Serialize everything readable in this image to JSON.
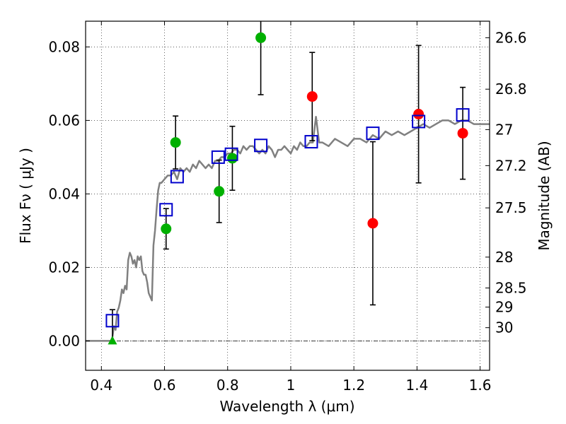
{
  "chart_data": {
    "type": "scatter",
    "xlabel": "Wavelength  λ (μm)",
    "ylabel": "Flux  Fν  ( μJy )",
    "ylabel_right": "Magnitude (AB)",
    "xlim": [
      0.35,
      1.63
    ],
    "ylim": [
      -0.008,
      0.087
    ],
    "grid": true,
    "x_ticks": [
      0.4,
      0.6,
      0.8,
      1.0,
      1.2,
      1.4,
      1.6
    ],
    "x_tick_labels": [
      "0.4",
      "0.6",
      "0.8",
      "1",
      "1.2",
      "1.4",
      "1.6"
    ],
    "y_ticks": [
      0.0,
      0.02,
      0.04,
      0.06,
      0.08
    ],
    "y_tick_labels": [
      "0.00",
      "0.02",
      "0.04",
      "0.06",
      "0.08"
    ],
    "right_ticks": [
      {
        "mag": "26.6",
        "flux": 0.0825
      },
      {
        "mag": "26.8",
        "flux": 0.0685
      },
      {
        "mag": "27",
        "flux": 0.0575
      },
      {
        "mag": "27.2",
        "flux": 0.0477
      },
      {
        "mag": "27.5",
        "flux": 0.0362
      },
      {
        "mag": "28",
        "flux": 0.0228
      },
      {
        "mag": "28.5",
        "flux": 0.0144
      },
      {
        "mag": "29",
        "flux": 0.0092
      },
      {
        "mag": "30",
        "flux": 0.0036
      }
    ],
    "colors": {
      "model": "#808080",
      "detection": "#00b000",
      "nir": "#ff0000",
      "model_phot": "#0000cc",
      "errorbar": "#000000",
      "upper_limit": "#00b000"
    },
    "series": [
      {
        "marker": "line",
        "x": [
          0.35,
          0.43,
          0.435,
          0.44,
          0.445,
          0.45,
          0.455,
          0.46,
          0.465,
          0.47,
          0.475,
          0.48,
          0.485,
          0.49,
          0.495,
          0.5,
          0.505,
          0.51,
          0.515,
          0.52,
          0.525,
          0.53,
          0.535,
          0.54,
          0.545,
          0.55,
          0.555,
          0.56,
          0.565,
          0.57,
          0.575,
          0.58,
          0.585,
          0.59,
          0.6,
          0.61,
          0.62,
          0.63,
          0.64,
          0.65,
          0.66,
          0.67,
          0.68,
          0.69,
          0.7,
          0.71,
          0.72,
          0.73,
          0.74,
          0.75,
          0.76,
          0.77,
          0.78,
          0.79,
          0.8,
          0.81,
          0.82,
          0.83,
          0.84,
          0.85,
          0.86,
          0.87,
          0.88,
          0.89,
          0.9,
          0.91,
          0.92,
          0.93,
          0.94,
          0.95,
          0.96,
          0.97,
          0.98,
          0.99,
          1.0,
          1.01,
          1.02,
          1.03,
          1.04,
          1.05,
          1.06,
          1.07,
          1.08,
          1.09,
          1.1,
          1.12,
          1.14,
          1.16,
          1.18,
          1.2,
          1.22,
          1.24,
          1.26,
          1.28,
          1.3,
          1.32,
          1.34,
          1.36,
          1.38,
          1.4,
          1.42,
          1.44,
          1.46,
          1.48,
          1.5,
          1.52,
          1.54,
          1.56,
          1.58,
          1.6,
          1.63
        ],
        "y": [
          0.0,
          0.0,
          0.001,
          0.004,
          0.003,
          0.008,
          0.009,
          0.011,
          0.014,
          0.013,
          0.015,
          0.014,
          0.022,
          0.024,
          0.023,
          0.021,
          0.022,
          0.02,
          0.023,
          0.022,
          0.023,
          0.019,
          0.018,
          0.018,
          0.016,
          0.013,
          0.012,
          0.011,
          0.026,
          0.03,
          0.036,
          0.041,
          0.043,
          0.043,
          0.044,
          0.045,
          0.045,
          0.046,
          0.044,
          0.047,
          0.046,
          0.047,
          0.046,
          0.048,
          0.047,
          0.049,
          0.048,
          0.047,
          0.048,
          0.047,
          0.049,
          0.049,
          0.05,
          0.05,
          0.051,
          0.051,
          0.052,
          0.052,
          0.051,
          0.053,
          0.052,
          0.053,
          0.053,
          0.052,
          0.051,
          0.052,
          0.051,
          0.053,
          0.052,
          0.05,
          0.052,
          0.052,
          0.053,
          0.052,
          0.051,
          0.053,
          0.052,
          0.054,
          0.053,
          0.053,
          0.054,
          0.054,
          0.061,
          0.054,
          0.054,
          0.053,
          0.055,
          0.054,
          0.053,
          0.055,
          0.055,
          0.054,
          0.056,
          0.055,
          0.057,
          0.056,
          0.057,
          0.056,
          0.057,
          0.058,
          0.059,
          0.058,
          0.059,
          0.06,
          0.06,
          0.059,
          0.06,
          0.06,
          0.059,
          0.059,
          0.059
        ]
      },
      {
        "marker": "circle",
        "color": "green",
        "points": [
          {
            "x": 0.605,
            "y": 0.0305,
            "err_lo": 0.0055,
            "err_hi": 0.0055
          },
          {
            "x": 0.635,
            "y": 0.054,
            "err_lo": 0.0072,
            "err_hi": 0.0072
          },
          {
            "x": 0.773,
            "y": 0.0407,
            "err_lo": 0.0085,
            "err_hi": 0.0085
          },
          {
            "x": 0.815,
            "y": 0.0497,
            "err_lo": 0.0087,
            "err_hi": 0.0087
          },
          {
            "x": 0.905,
            "y": 0.0825,
            "err_lo": 0.0155,
            "err_hi": 0.0155
          }
        ]
      },
      {
        "marker": "circle",
        "color": "red",
        "points": [
          {
            "x": 1.068,
            "y": 0.0665,
            "err_lo": 0.012,
            "err_hi": 0.012
          },
          {
            "x": 1.26,
            "y": 0.032,
            "err_lo": 0.0222,
            "err_hi": 0.0222
          },
          {
            "x": 1.405,
            "y": 0.0617,
            "err_lo": 0.0187,
            "err_hi": 0.0187
          },
          {
            "x": 1.545,
            "y": 0.0565,
            "err_lo": 0.0125,
            "err_hi": 0.0125
          }
        ]
      },
      {
        "marker": "open-square",
        "color": "blue",
        "x": [
          0.435,
          0.605,
          0.64,
          0.77,
          0.812,
          0.905,
          1.065,
          1.26,
          1.405,
          1.545
        ],
        "y": [
          0.0055,
          0.0357,
          0.0447,
          0.05,
          0.0508,
          0.0532,
          0.0542,
          0.0565,
          0.0597,
          0.0615
        ]
      },
      {
        "marker": "triangle",
        "color": "green",
        "x": [
          0.435
        ],
        "y": [
          0.0
        ],
        "err_hi": [
          0.0085
        ]
      }
    ]
  }
}
